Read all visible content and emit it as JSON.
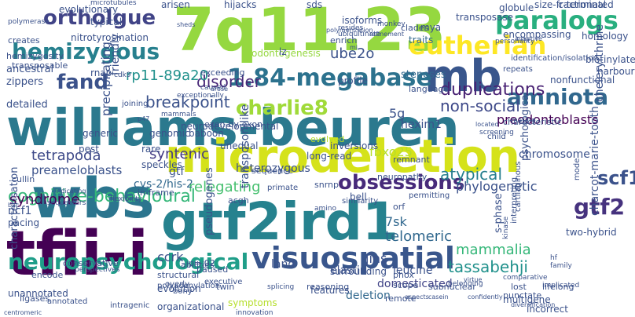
{
  "words": [
    {
      "text": "williams-beuren",
      "color": "#2b798e",
      "vertical": false
    },
    {
      "text": "microdeletion",
      "color": "#d5e21a",
      "vertical": false
    },
    {
      "text": "gtf2ird1",
      "color": "#26828e",
      "vertical": false
    },
    {
      "text": "7q11.23",
      "color": "#95d840",
      "vertical": false
    },
    {
      "text": "tfii-i",
      "color": "#440154",
      "vertical": false
    },
    {
      "text": "wbs",
      "color": "#2b758e",
      "vertical": false
    },
    {
      "text": "mb",
      "color": "#39568c",
      "vertical": false
    },
    {
      "text": "visuospatial",
      "color": "#39568c",
      "vertical": false
    },
    {
      "text": "neuropsychological",
      "color": "#1f9e89",
      "vertical": false
    },
    {
      "text": "hemizygous",
      "color": "#27808e",
      "vertical": false
    },
    {
      "text": "eutherian",
      "color": "#fde725",
      "vertical": false
    },
    {
      "text": "paralogs",
      "color": "#29af7f",
      "vertical": false
    },
    {
      "text": "ortholgue",
      "color": "#414487",
      "vertical": false
    },
    {
      "text": "1.84-megabase",
      "color": "#2c728e",
      "vertical": false
    },
    {
      "text": "charlie8",
      "color": "#a0da39",
      "vertical": false
    },
    {
      "text": "amniota",
      "color": "#31688e",
      "vertical": false
    },
    {
      "text": "fand",
      "color": "#3b528b",
      "vertical": false
    },
    {
      "text": "obsessions",
      "color": "#472a7a",
      "vertical": false
    },
    {
      "text": "cognitive-behavioural",
      "color": "#35b779",
      "vertical": false
    },
    {
      "text": "gtf2",
      "color": "#46327e",
      "vertical": false
    },
    {
      "text": "disorder",
      "color": "#482878",
      "vertical": false
    },
    {
      "text": "duplications",
      "color": "#482173",
      "vertical": false
    },
    {
      "text": "breakpoint",
      "color": "#3b528b",
      "vertical": false
    },
    {
      "text": "rp11-89a20",
      "color": "#21918c",
      "vertical": false
    },
    {
      "text": "relegating",
      "color": "#46c06f",
      "vertical": false
    },
    {
      "text": "syndrome",
      "color": "#440154",
      "vertical": false
    },
    {
      "text": "tetrapoda",
      "color": "#3e4a89",
      "vertical": false
    },
    {
      "text": "fbxo25",
      "color": "#b5de2b",
      "vertical": false
    },
    {
      "text": "syntenic",
      "color": "#443a83",
      "vertical": false
    },
    {
      "text": "non-social",
      "color": "#3e4989",
      "vertical": false
    },
    {
      "text": "atypical",
      "color": "#277f8e",
      "vertical": false
    },
    {
      "text": "ube2o",
      "color": "#3b528b",
      "vertical": false
    },
    {
      "text": "telomeric",
      "color": "#31688e",
      "vertical": false
    },
    {
      "text": "mammalia",
      "color": "#35b779",
      "vertical": false
    },
    {
      "text": "tassabehji",
      "color": "#21918c",
      "vertical": false
    },
    {
      "text": "scf1",
      "color": "#3b528b",
      "vertical": false
    },
    {
      "text": "gtf",
      "color": "#3b528b",
      "vertical": false
    },
    {
      "text": "ccrk",
      "color": "#3b528b",
      "vertical": false
    },
    {
      "text": "jins",
      "color": "#3b528b",
      "vertical": false
    },
    {
      "text": "7sk",
      "color": "#31688e",
      "vertical": false
    },
    {
      "text": "phylogenetic",
      "color": "#3b528b",
      "vertical": false
    },
    {
      "text": "preodontoblasts",
      "color": "#440154",
      "vertical": false
    },
    {
      "text": "preameloblasts",
      "color": "#3b528b",
      "vertical": false
    },
    {
      "text": "stenoses",
      "color": "#31688e",
      "vertical": false
    },
    {
      "text": "5g",
      "color": "#3b528b",
      "vertical": false
    },
    {
      "text": "hexim1",
      "color": "#3b528b",
      "vertical": false
    },
    {
      "text": "elastin",
      "color": "#3b528b",
      "vertical": false
    },
    {
      "text": "leucine",
      "color": "#3b528b",
      "vertical": false
    },
    {
      "text": "domesticated",
      "color": "#414487",
      "vertical": false
    },
    {
      "text": "deletion",
      "color": "#31688e",
      "vertical": false
    },
    {
      "text": "chromosome",
      "color": "#3b528b",
      "vertical": false
    },
    {
      "text": "heterozygous",
      "color": "#3b528b",
      "vertical": false
    },
    {
      "text": "cys-2/his-2",
      "color": "#31688e",
      "vertical": false
    },
    {
      "text": "land",
      "color": "#3b528b",
      "vertical": false
    },
    {
      "text": "two-hybrid",
      "color": "#3b528b",
      "vertical": false
    },
    {
      "text": "ncf1",
      "color": "#3b528b",
      "vertical": false
    },
    {
      "text": "mya",
      "color": "#3b528b",
      "vertical": false
    },
    {
      "text": "traits",
      "color": "#31688e",
      "vertical": false
    },
    {
      "text": "transposase",
      "color": "#3b528b",
      "vertical": false
    },
    {
      "text": "encompassing",
      "color": "#3b528b",
      "vertical": false
    },
    {
      "text": "globule",
      "color": "#3b528b",
      "vertical": false
    },
    {
      "text": "clades",
      "color": "#3b528b",
      "vertical": false
    },
    {
      "text": "evolutionary",
      "color": "#3b528b",
      "vertical": false
    },
    {
      "text": "typical",
      "color": "#3b528b",
      "vertical": false
    },
    {
      "text": "ancestral",
      "color": "#3b528b",
      "vertical": false
    },
    {
      "text": "zippers",
      "color": "#3b528b",
      "vertical": false
    },
    {
      "text": "detailed",
      "color": "#3b528b",
      "vertical": false
    },
    {
      "text": "profile",
      "color": "#3b528b",
      "vertical": false
    },
    {
      "text": "nitrotyrosination",
      "color": "#3b528b",
      "vertical": false
    },
    {
      "text": "odontogenesis",
      "color": "#95d840",
      "vertical": false
    },
    {
      "text": "neurodevelopmental",
      "color": "#3b528b",
      "vertical": false
    },
    {
      "text": "features",
      "color": "#3b528b",
      "vertical": false
    },
    {
      "text": "surrounding",
      "color": "#3b528b",
      "vertical": false
    },
    {
      "text": "symptoms",
      "color": "#b5de2b",
      "vertical": false
    },
    {
      "text": "organizational",
      "color": "#3b528b",
      "vertical": false
    },
    {
      "text": "unannotated",
      "color": "#3b528b",
      "vertical": false
    },
    {
      "text": "incorrect",
      "color": "#3b528b",
      "vertical": false
    },
    {
      "text": "multigene",
      "color": "#3b528b",
      "vertical": false
    },
    {
      "text": "punctate",
      "color": "#3b528b",
      "vertical": false
    },
    {
      "text": "evolution",
      "color": "#3b528b",
      "vertical": false
    },
    {
      "text": "pacing",
      "color": "#3b528b",
      "vertical": false
    },
    {
      "text": "p=.02",
      "color": "#3b528b",
      "vertical": false
    },
    {
      "text": "paused",
      "color": "#3b528b",
      "vertical": false
    },
    {
      "text": "structural",
      "color": "#3b528b",
      "vertical": false
    },
    {
      "text": "twin",
      "color": "#3b528b",
      "vertical": false
    },
    {
      "text": "scope",
      "color": "#3b528b",
      "vertical": false
    },
    {
      "text": "bell",
      "color": "#3b528b",
      "vertical": false
    },
    {
      "text": "snrnp",
      "color": "#3b528b",
      "vertical": false
    },
    {
      "text": "orf",
      "color": "#3b528b",
      "vertical": false
    },
    {
      "text": "lost",
      "color": "#3b528b",
      "vertical": false
    },
    {
      "text": "lifelong",
      "color": "#3b528b",
      "vertical": false
    },
    {
      "text": "phox",
      "color": "#3b528b",
      "vertical": false
    },
    {
      "text": "subnuclear",
      "color": "#3b528b",
      "vertical": false
    },
    {
      "text": "reasoning",
      "color": "#3b528b",
      "vertical": false
    },
    {
      "text": "remote",
      "color": "#3b528b",
      "vertical": false
    },
    {
      "text": "rnap",
      "color": "#3b528b",
      "vertical": false
    },
    {
      "text": "arisen",
      "color": "#3b528b",
      "vertical": false
    },
    {
      "text": "hijacks",
      "color": "#3b528b",
      "vertical": false
    },
    {
      "text": "sds",
      "color": "#3b528b",
      "vertical": false
    },
    {
      "text": "isoforms",
      "color": "#3b528b",
      "vertical": false
    },
    {
      "text": "size-fractionated",
      "color": "#3b528b",
      "vertical": false
    },
    {
      "text": "c-terminal",
      "color": "#3b528b",
      "vertical": false
    },
    {
      "text": "homology",
      "color": "#3b528b",
      "vertical": false
    },
    {
      "text": "biotinylated",
      "color": "#3b528b",
      "vertical": false
    },
    {
      "text": "harbour",
      "color": "#3b528b",
      "vertical": false
    },
    {
      "text": "nonfunctional",
      "color": "#3b528b",
      "vertical": false
    },
    {
      "text": "identification/isolation",
      "color": "#3b528b",
      "vertical": false
    },
    {
      "text": "repeats",
      "color": "#3b528b",
      "vertical": false
    },
    {
      "text": "characteristic",
      "color": "#3b528b",
      "vertical": false
    },
    {
      "text": "language",
      "color": "#3b528b",
      "vertical": false
    },
    {
      "text": "exceeding",
      "color": "#3b528b",
      "vertical": false
    },
    {
      "text": "enrich",
      "color": "#3b528b",
      "vertical": false
    },
    {
      "text": "lz",
      "color": "#3b528b",
      "vertical": false
    },
    {
      "text": "generic",
      "color": "#3b528b",
      "vertical": false
    },
    {
      "text": "genomic",
      "color": "#3b528b",
      "vertical": false
    },
    {
      "text": "baboon",
      "color": "#3b528b",
      "vertical": false
    },
    {
      "text": "pest",
      "color": "#3b528b",
      "vertical": false
    },
    {
      "text": "rare",
      "color": "#3b528b",
      "vertical": false
    },
    {
      "text": "speckles",
      "color": "#3b528b",
      "vertical": false
    },
    {
      "text": "unequal",
      "color": "#3b528b",
      "vertical": false
    },
    {
      "text": "inversions",
      "color": "#3b528b",
      "vertical": false
    },
    {
      "text": "long-read",
      "color": "#3b528b",
      "vertical": false
    },
    {
      "text": "evolved",
      "color": "#b5de2b",
      "vertical": false
    },
    {
      "text": "exon-by-exon",
      "color": "#3b528b",
      "vertical": false
    },
    {
      "text": "remnant",
      "color": "#3b528b",
      "vertical": false
    },
    {
      "text": "neuropathy",
      "color": "#3b528b",
      "vertical": false
    },
    {
      "text": "permitting",
      "color": "#3b528b",
      "vertical": false
    },
    {
      "text": "similarity",
      "color": "#3b528b",
      "vertical": false
    },
    {
      "text": "sequence",
      "color": "#3b528b",
      "vertical": false
    },
    {
      "text": "primate",
      "color": "#3b528b",
      "vertical": false
    },
    {
      "text": "acgh",
      "color": "#3b528b",
      "vertical": false
    },
    {
      "text": "cullin",
      "color": "#3b528b",
      "vertical": false
    },
    {
      "text": "in-frame",
      "color": "#3b528b",
      "vertical": false
    },
    {
      "text": "abilities",
      "color": "#3b528b",
      "vertical": false
    },
    {
      "text": "polyadenylation",
      "color": "#3b528b",
      "vertical": false
    },
    {
      "text": "overly",
      "color": "#3b528b",
      "vertical": false
    },
    {
      "text": "bony",
      "color": "#3b528b",
      "vertical": false
    },
    {
      "text": "encode",
      "color": "#3b528b",
      "vertical": false
    },
    {
      "text": "conservative",
      "color": "#3b528b",
      "vertical": false
    },
    {
      "text": "ligases",
      "color": "#3b528b",
      "vertical": false
    },
    {
      "text": "annotated",
      "color": "#3b528b",
      "vertical": false
    },
    {
      "text": "intragenic",
      "color": "#3b528b",
      "vertical": false
    },
    {
      "text": "innovation",
      "color": "#3b528b",
      "vertical": false
    },
    {
      "text": "splicing",
      "color": "#3b528b",
      "vertical": false
    },
    {
      "text": "executive",
      "color": "#3b528b",
      "vertical": false
    },
    {
      "text": "transposable",
      "color": "#3b528b",
      "vertical": false
    },
    {
      "text": "hemizygosity",
      "color": "#3b528b",
      "vertical": false
    },
    {
      "text": "creates",
      "color": "#3b528b",
      "vertical": false
    },
    {
      "text": "polymerase",
      "color": "#3b528b",
      "vertical": false
    },
    {
      "text": "sheds",
      "color": "#3b528b",
      "vertical": false
    },
    {
      "text": "microtubules",
      "color": "#3b528b",
      "vertical": false
    },
    {
      "text": "exceptionally",
      "color": "#3b528b",
      "vertical": false
    },
    {
      "text": "arose",
      "color": "#3b528b",
      "vertical": false
    },
    {
      "text": "mammals",
      "color": "#3b528b",
      "vertical": false
    },
    {
      "text": "p47",
      "color": "#3b528b",
      "vertical": false
    },
    {
      "text": "caused",
      "color": "#3b528b",
      "vertical": false
    },
    {
      "text": "cdk9",
      "color": "#3b528b",
      "vertical": false
    },
    {
      "text": "joining",
      "color": "#3b528b",
      "vertical": false
    },
    {
      "text": "resides",
      "color": "#3b528b",
      "vertical": false
    },
    {
      "text": "refinement",
      "color": "#3b528b",
      "vertical": false
    },
    {
      "text": "personality",
      "color": "#3b528b",
      "vertical": false
    },
    {
      "text": "adaptive",
      "color": "#3b528b",
      "vertical": false
    },
    {
      "text": "mi",
      "color": "#3b528b",
      "vertical": false
    },
    {
      "text": "monkey",
      "color": "#3b528b",
      "vertical": false
    },
    {
      "text": "child",
      "color": "#3b528b",
      "vertical": false
    },
    {
      "text": "mating",
      "color": "#3b528b",
      "vertical": false
    },
    {
      "text": "screening",
      "color": "#3b528b",
      "vertical": false
    },
    {
      "text": "located",
      "color": "#3b528b",
      "vertical": false
    },
    {
      "text": "flexibility",
      "color": "#3b528b",
      "vertical": false
    },
    {
      "text": "indicating",
      "color": "#3b528b",
      "vertical": false
    },
    {
      "text": "sequesters",
      "color": "#3b528b",
      "vertical": false
    },
    {
      "text": "bac",
      "color": "#3b528b",
      "vertical": false
    },
    {
      "text": "amino",
      "color": "#3b528b",
      "vertical": false
    },
    {
      "text": "perspectives",
      "color": "#3b528b",
      "vertical": false
    },
    {
      "text": "virtue",
      "color": "#3b528b",
      "vertical": false
    },
    {
      "text": "belonging",
      "color": "#3b528b",
      "vertical": false
    },
    {
      "text": "aspects",
      "color": "#3b528b",
      "vertical": false
    },
    {
      "text": "casein",
      "color": "#3b528b",
      "vertical": false
    },
    {
      "text": "confidently",
      "color": "#3b528b",
      "vertical": false
    },
    {
      "text": "diversification",
      "color": "#3b528b",
      "vertical": false
    },
    {
      "text": "hf",
      "color": "#3b528b",
      "vertical": false
    },
    {
      "text": "comparative",
      "color": "#3b528b",
      "vertical": false
    },
    {
      "text": "family",
      "color": "#3b528b",
      "vertical": false
    },
    {
      "text": "implicated",
      "color": "#3b528b",
      "vertical": false
    },
    {
      "text": "centromeric",
      "color": "#3b528b",
      "vertical": false
    },
    {
      "text": "polymerization",
      "color": "#3b528b",
      "vertical": false
    },
    {
      "text": "ubiquitinate",
      "color": "#3b528b",
      "vertical": false
    },
    {
      "text": "friendly",
      "color": "#3b528b",
      "vertical": true
    },
    {
      "text": "precipitating",
      "color": "#3b528b",
      "vertical": true
    },
    {
      "text": "transposon-like",
      "color": "#3b528b",
      "vertical": true
    },
    {
      "text": "pseudogenes",
      "color": "#3b528b",
      "vertical": true
    },
    {
      "text": "characterisation",
      "color": "#3b528b",
      "vertical": true
    },
    {
      "text": "cartilaginous",
      "color": "#3b528b",
      "vertical": true
    },
    {
      "text": "psychological",
      "color": "#3b528b",
      "vertical": true
    },
    {
      "text": "s-phase",
      "color": "#3b528b",
      "vertical": true
    },
    {
      "text": "interpreting",
      "color": "#3b528b",
      "vertical": true
    },
    {
      "text": "kinase",
      "color": "#3b528b",
      "vertical": true
    },
    {
      "text": "charcot-marie-tooth",
      "color": "#3b528b",
      "vertical": true
    },
    {
      "text": "cheleryrthrine",
      "color": "#3b528b",
      "vertical": true
    },
    {
      "text": "mode",
      "color": "#3b528b",
      "vertical": true
    },
    {
      "text": "bind",
      "color": "#3b528b",
      "vertical": true
    }
  ]
}
